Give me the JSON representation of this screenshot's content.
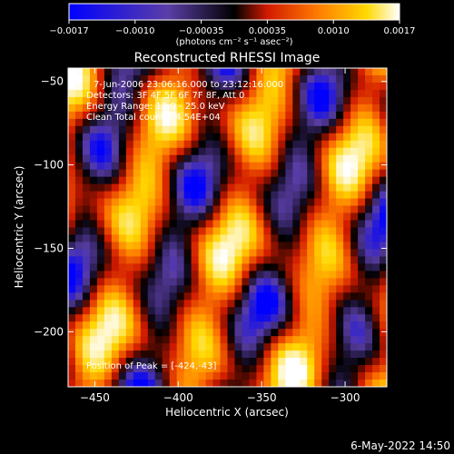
{
  "colorbar": {
    "ticks": [
      "−0.0017",
      "−0.0010",
      "−0.00035",
      "0.00035",
      "0.0010",
      "0.0017"
    ],
    "unit": "(photons cm⁻² s⁻¹ asec⁻²)"
  },
  "title": "Reconstructed RHESSI Image",
  "overlay": {
    "time_range": "7-Jun-2006 23:06:16.000 to 23:12:16.000",
    "detectors": "Detectors: 3F 4F 5F 6F 7F 8F, Att 0",
    "energy": "Energy Range: 12.0 - 25.0 keV",
    "clean": "Clean    Total counts: 4.54E+04",
    "peak": "Position of Peak = [-424,-43]"
  },
  "xaxis": {
    "label": "Heliocentric X (arcsec)",
    "ticks": [
      {
        "value": -450,
        "text": "−450"
      },
      {
        "value": -400,
        "text": "−400"
      },
      {
        "value": -350,
        "text": "−350"
      },
      {
        "value": -300,
        "text": "−300"
      }
    ],
    "range": [
      -466,
      -275
    ]
  },
  "yaxis": {
    "label": "Heliocentric Y (arcsec)",
    "ticks": [
      {
        "value": -50,
        "text": "−50"
      },
      {
        "value": -100,
        "text": "−100"
      },
      {
        "value": -150,
        "text": "−150"
      },
      {
        "value": -200,
        "text": "−200"
      }
    ],
    "range": [
      -233,
      -42
    ]
  },
  "footer": {
    "date": "6-May-2022 14:50"
  },
  "colors": {
    "background": "#000000",
    "text": "#ffffff",
    "colormap": [
      "#0000ff",
      "#5a3ea6",
      "#000000",
      "#d11a00",
      "#ff7a00",
      "#ffd800",
      "#ffffff"
    ]
  }
}
